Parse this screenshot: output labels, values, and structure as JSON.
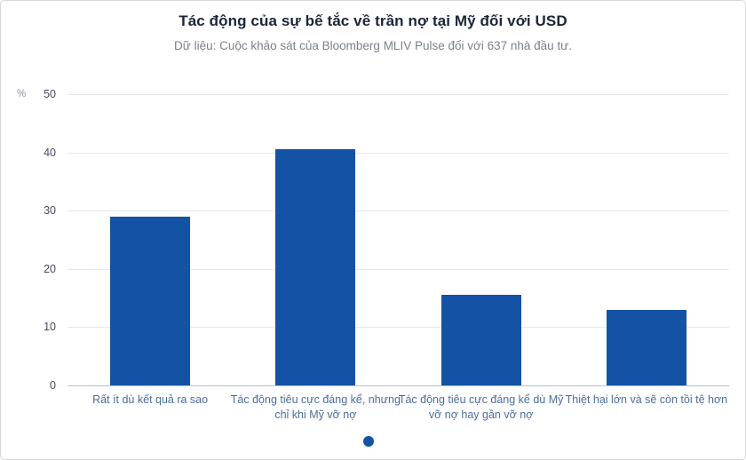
{
  "chart_data": {
    "type": "bar",
    "title": "Tác động của sự bế tắc về trần nợ tại Mỹ đối với USD",
    "subtitle": "Dữ liệu: Cuộc khảo sát của Bloomberg MLIV Pulse đối với 637 nhà đầu tư.",
    "unit_label": "%",
    "categories": [
      "Rất ít dù kết quả ra sao",
      "Tác động tiêu cực đáng kể, nhưng chỉ khi Mỹ vỡ nợ",
      "Tác động tiêu cực đáng kể dù Mỹ vỡ nợ hay gần vỡ nợ",
      "Thiệt hại lớn và sẽ còn tồi tệ hơn"
    ],
    "values": [
      29,
      40.5,
      15.5,
      13
    ],
    "yticks": [
      0,
      10,
      20,
      30,
      40,
      50
    ],
    "ylim": [
      0,
      50
    ],
    "xlabel": "",
    "ylabel": "%",
    "grid": true,
    "legend_position": "bottom-center",
    "bar_color": "#1452a5",
    "legend_dot_color": "#1452a5"
  }
}
